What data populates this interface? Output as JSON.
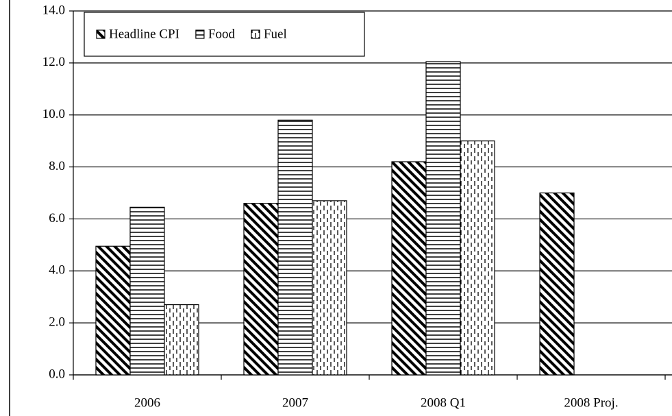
{
  "chart_data": {
    "type": "bar",
    "categories": [
      "2006",
      "2007",
      "2008 Q1",
      "2008 Proj."
    ],
    "series": [
      {
        "name": "Headline CPI",
        "color": "#000000",
        "pattern": "diagonal",
        "values": [
          4.95,
          6.6,
          8.2,
          7.0
        ]
      },
      {
        "name": "Food",
        "color": "#000000",
        "pattern": "horizontal",
        "values": [
          6.45,
          9.8,
          12.05,
          null
        ]
      },
      {
        "name": "Fuel",
        "color": "#000000",
        "pattern": "dashed-vertical",
        "values": [
          2.7,
          6.7,
          9.0,
          null
        ]
      }
    ],
    "ylim": [
      0,
      14
    ],
    "yticks": [
      {
        "value": 0,
        "label": "0.0"
      },
      {
        "value": 2,
        "label": "2.0"
      },
      {
        "value": 4,
        "label": "4.0"
      },
      {
        "value": 6,
        "label": "6.0"
      },
      {
        "value": 8,
        "label": "8.0"
      },
      {
        "value": 10,
        "label": "10.0"
      },
      {
        "value": 12,
        "label": "12.0"
      },
      {
        "value": 14,
        "label": "14.0"
      }
    ],
    "grid": true,
    "legend": "top-left"
  }
}
